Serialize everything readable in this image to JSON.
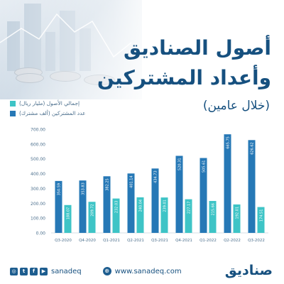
{
  "title_line1": "أصول الصناديق",
  "title_line2": "وأعداد المشتركين",
  "subtitle": "(خلال عامين)",
  "legend": [
    {
      "label": "إجمالي الأصول (مليار ريال)",
      "color": "#3ec4c6"
    },
    {
      "label": "عدد المشتركين (ألف مشترك)",
      "color": "#2678b6"
    }
  ],
  "chart_data": {
    "type": "bar",
    "title": "",
    "xlabel": "",
    "ylabel": "",
    "ylim": [
      0,
      700
    ],
    "yticks": [
      "700.00",
      "600.00",
      "500.00",
      "400.00",
      "300.00",
      "200.00",
      "100.00",
      "0.00"
    ],
    "grid": false,
    "categories": [
      "Q3-2020",
      "Q4-2020",
      "Q1-2021",
      "Q2-2021",
      "Q3-2021",
      "Q4-2021",
      "Q1-2022",
      "Q2-2022",
      "Q3-2022"
    ],
    "series": [
      {
        "name": "عدد المشتركين (ألف مشترك)",
        "color": "#2678b6",
        "values": [
          350.59,
          353.83,
          382.25,
          401.14,
          434.73,
          520.31,
          505.61,
          665.75,
          626.62
        ],
        "labels": [
          "350.59",
          "353.83",
          "382.25",
          "401.14",
          "434.73",
          "520.31",
          "505.61",
          "665.75",
          "626.62"
        ]
      },
      {
        "name": "إجمالي الأصول (مليار ريال)",
        "color": "#3ec4c6",
        "values": [
          188.07,
          209.72,
          232.03,
          240.04,
          239.01,
          227.17,
          215.66,
          192.01,
          174.51
        ],
        "labels": [
          "188.07",
          "209.72",
          "232.03",
          "240.04",
          "239.01",
          "227.17",
          "215.66",
          "192.01",
          "174.51"
        ]
      }
    ]
  },
  "footer": {
    "handle": "sanadeq",
    "website": "www.sanadeq.com",
    "logo": "صناديق",
    "social_icons": [
      "instagram-icon",
      "twitter-icon",
      "facebook-icon",
      "youtube-icon"
    ]
  }
}
